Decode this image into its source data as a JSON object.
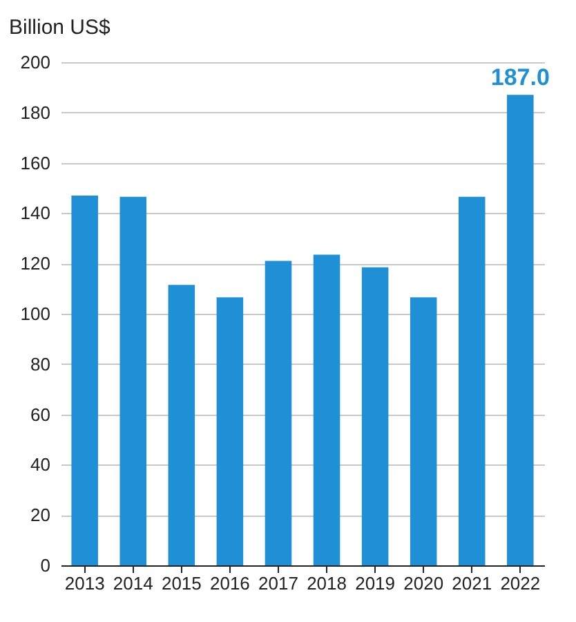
{
  "chart_data": {
    "type": "bar",
    "ylabel": "Billion US$",
    "categories": [
      "2013",
      "2014",
      "2015",
      "2016",
      "2017",
      "2018",
      "2019",
      "2020",
      "2021",
      "2022"
    ],
    "values": [
      147,
      146.5,
      111.5,
      106.5,
      121,
      123.5,
      118.5,
      106.5,
      146.5,
      187.0
    ],
    "value_labels": [
      null,
      null,
      null,
      null,
      null,
      null,
      null,
      null,
      null,
      "187.0"
    ],
    "color": "#1f8fd6",
    "ylim": [
      0,
      200
    ],
    "yticks": [
      0,
      20,
      40,
      60,
      80,
      100,
      120,
      140,
      160,
      180,
      200
    ],
    "grid": "y"
  }
}
